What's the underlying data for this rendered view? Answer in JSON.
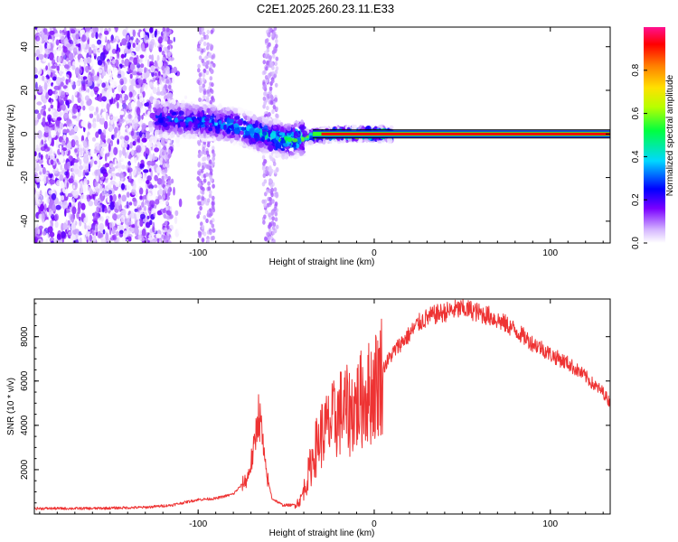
{
  "title": "C2E1.2025.260.23.11.E33",
  "chart_data": [
    {
      "type": "heatmap",
      "xlabel": "Height of straight line (km)",
      "ylabel": "Frequency (Hz)",
      "xlim": [
        -193,
        134
      ],
      "ylim": [
        -50,
        49
      ],
      "xticks": [
        -100,
        0,
        100
      ],
      "yticks": [
        -40,
        -20,
        0,
        20,
        40
      ],
      "colorbar": {
        "label": "Normalized spectral amplitude",
        "range": [
          0,
          1
        ],
        "ticks": [
          "0.0",
          "0.2",
          "0.4",
          "0.6",
          "0.8"
        ],
        "colors": [
          "#ffffff",
          "#c8a0ff",
          "#6a00ff",
          "#0000ff",
          "#00e5ff",
          "#00ff40",
          "#b0ff00",
          "#ffee00",
          "#ff8000",
          "#ff0000",
          "#ff00a0"
        ]
      },
      "ridge": [
        {
          "x": -120,
          "freq": 7,
          "amp": 0.35
        },
        {
          "x": -100,
          "freq": 6,
          "amp": 0.4
        },
        {
          "x": -80,
          "freq": 4,
          "amp": 0.45
        },
        {
          "x": -65,
          "freq": 0,
          "amp": 0.5
        },
        {
          "x": -50,
          "freq": -3,
          "amp": 0.6
        },
        {
          "x": -35,
          "freq": -1,
          "amp": 0.7
        },
        {
          "x": -20,
          "freq": 0,
          "amp": 0.85
        },
        {
          "x": 0,
          "freq": 0,
          "amp": 0.9
        },
        {
          "x": 134,
          "freq": 0,
          "amp": 1.0
        }
      ]
    },
    {
      "type": "line",
      "xlabel": "Height of straight line (km)",
      "ylabel": "SNR (10 * v/v)",
      "xlim": [
        -193,
        134
      ],
      "ylim": [
        0,
        9700
      ],
      "xticks": [
        -100,
        0,
        100
      ],
      "yticks": [
        2000,
        4000,
        6000,
        8000
      ],
      "series": [
        {
          "name": "SNR",
          "color": "#ee3333",
          "x": [
            -193,
            -160,
            -130,
            -115,
            -100,
            -90,
            -80,
            -72,
            -68,
            -66,
            -64,
            -62,
            -58,
            -52,
            -46,
            -42,
            -38,
            -34,
            -30,
            -26,
            -22,
            -18,
            -14,
            -10,
            -6,
            -2,
            2,
            6,
            10,
            15,
            20,
            25,
            30,
            35,
            40,
            45,
            50,
            55,
            60,
            65,
            70,
            75,
            80,
            85,
            90,
            95,
            100,
            105,
            110,
            115,
            120,
            125,
            130,
            134
          ],
          "y": [
            250,
            250,
            300,
            400,
            650,
            700,
            900,
            1600,
            3000,
            4600,
            3800,
            2100,
            700,
            400,
            400,
            600,
            1600,
            2800,
            3600,
            3900,
            4300,
            4700,
            4600,
            4900,
            5300,
            5500,
            6000,
            6700,
            7200,
            7700,
            8100,
            8600,
            8850,
            9000,
            9100,
            9200,
            9250,
            9200,
            9050,
            8950,
            8750,
            8550,
            8300,
            8000,
            7700,
            7500,
            7200,
            7000,
            6800,
            6500,
            6200,
            5800,
            5500,
            5000
          ]
        }
      ]
    }
  ]
}
